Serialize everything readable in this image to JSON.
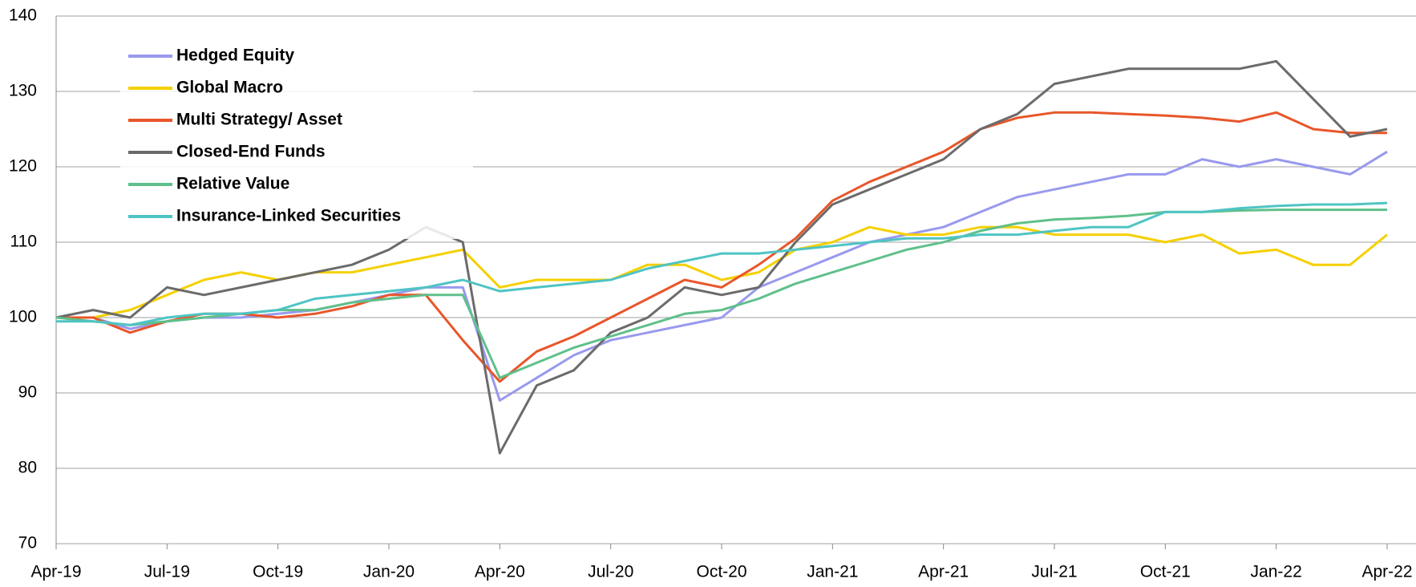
{
  "chart_data": {
    "type": "line",
    "categories": [
      "Apr-19",
      null,
      null,
      "Jul-19",
      null,
      null,
      "Oct-19",
      null,
      null,
      "Jan-20",
      null,
      null,
      "Apr-20",
      null,
      null,
      "Jul-20",
      null,
      null,
      "Oct-20",
      null,
      null,
      "Jan-21",
      null,
      null,
      "Apr-21",
      null,
      null,
      "Jul-21",
      null,
      null,
      "Oct-21",
      null,
      null,
      "Jan-22",
      null,
      null,
      "Apr-22"
    ],
    "ylim": [
      70,
      140
    ],
    "yticks": [
      70,
      80,
      90,
      100,
      110,
      120,
      130,
      140
    ],
    "grid": true,
    "legend": "upper left",
    "series": [
      {
        "name": "Hedged Equity",
        "color": "#9999ee",
        "values": [
          100,
          100,
          98.5,
          99.5,
          100,
          100,
          100.5,
          101,
          102,
          103,
          104,
          104,
          89,
          92,
          95,
          97,
          98,
          99,
          100,
          104,
          106,
          108,
          110,
          111,
          112,
          114,
          116,
          117,
          118,
          119,
          119,
          121,
          120,
          121,
          120,
          119,
          122
        ]
      },
      {
        "name": "Global  Macro",
        "color": "#f5d000",
        "values": [
          100,
          100,
          101,
          103,
          105,
          106,
          105,
          106,
          106,
          107,
          108,
          109,
          104,
          105,
          105,
          105,
          107,
          107,
          105,
          106,
          109,
          110,
          112,
          111,
          111,
          112,
          112,
          111,
          111,
          111,
          110,
          111,
          108.5,
          109,
          107,
          107,
          111
        ]
      },
      {
        "name": "Multi Strategy/ Asset",
        "color": "#e8562a",
        "values": [
          100,
          100,
          98,
          99.5,
          100.5,
          100.5,
          100,
          100.5,
          101.5,
          103,
          103,
          97,
          91.5,
          95.5,
          97.5,
          100,
          102.5,
          105,
          104,
          107,
          110.5,
          115.5,
          118,
          120,
          122,
          125,
          126.5,
          127.2,
          127.2,
          127,
          126.8,
          126.5,
          126,
          127.2,
          125,
          124.5,
          124.5
        ]
      },
      {
        "name": "Closed-End Funds",
        "color": "#6b6b6b",
        "values": [
          100,
          101,
          100,
          104,
          103,
          104,
          105,
          106,
          107,
          109,
          112,
          110,
          82,
          91,
          93,
          98,
          100,
          104,
          103,
          104,
          110,
          115,
          117,
          119,
          121,
          125,
          127,
          131,
          132,
          133,
          133,
          133,
          133,
          134,
          129,
          124,
          125
        ]
      },
      {
        "name": "Relative Value",
        "color": "#5fc08b",
        "values": [
          100,
          99.5,
          99,
          99.5,
          100,
          100.5,
          101,
          101,
          102,
          102.5,
          103,
          103,
          92,
          94,
          96,
          97.5,
          99,
          100.5,
          101,
          102.5,
          104.5,
          106,
          107.5,
          109,
          110,
          111.5,
          112.5,
          113,
          113.2,
          113.5,
          114,
          114,
          114.2,
          114.3,
          114.3,
          114.3,
          114.3
        ]
      },
      {
        "name": "Insurance-Linked Securities",
        "color": "#4fc4c4",
        "values": [
          99.5,
          99.5,
          99,
          100,
          100.5,
          100.5,
          101,
          102.5,
          103,
          103.5,
          104,
          105,
          103.5,
          104,
          104.5,
          105,
          106.5,
          107.5,
          108.5,
          108.5,
          109,
          109.5,
          110,
          110.5,
          110.5,
          111,
          111,
          111.5,
          112,
          112,
          114,
          114,
          114.5,
          114.8,
          115,
          115,
          115.2
        ]
      }
    ]
  }
}
